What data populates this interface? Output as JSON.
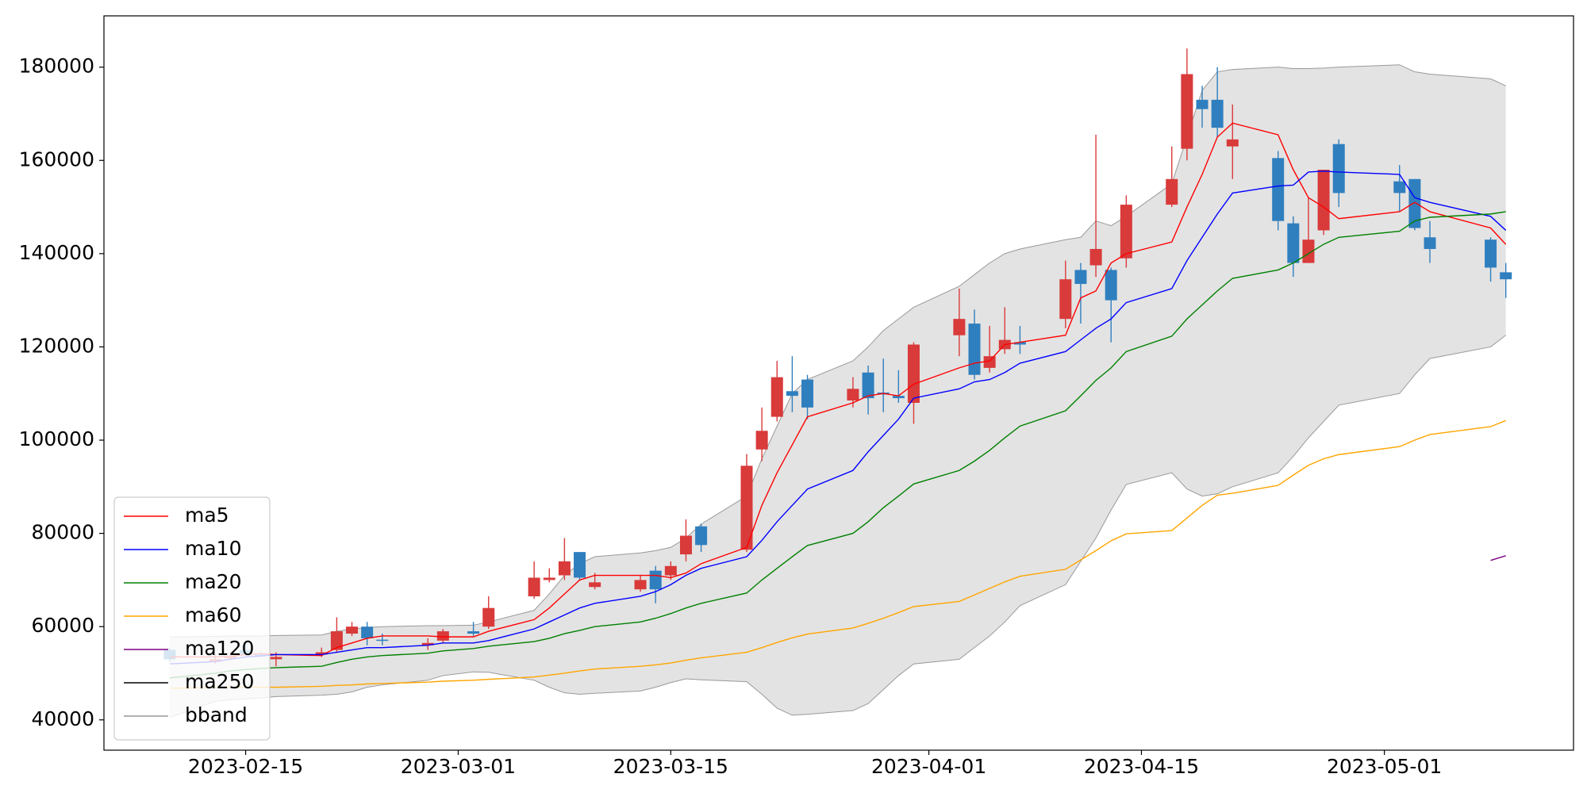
{
  "chart_data": {
    "type": "candlestick",
    "x": [
      "2023-02-10",
      "2023-02-13",
      "2023-02-14",
      "2023-02-15",
      "2023-02-16",
      "2023-02-17",
      "2023-02-20",
      "2023-02-21",
      "2023-02-22",
      "2023-02-23",
      "2023-02-24",
      "2023-02-27",
      "2023-02-28",
      "2023-03-02",
      "2023-03-03",
      "2023-03-06",
      "2023-03-07",
      "2023-03-08",
      "2023-03-09",
      "2023-03-10",
      "2023-03-13",
      "2023-03-14",
      "2023-03-15",
      "2023-03-16",
      "2023-03-17",
      "2023-03-20",
      "2023-03-21",
      "2023-03-22",
      "2023-03-23",
      "2023-03-24",
      "2023-03-27",
      "2023-03-28",
      "2023-03-29",
      "2023-03-30",
      "2023-03-31",
      "2023-04-03",
      "2023-04-04",
      "2023-04-05",
      "2023-04-06",
      "2023-04-07",
      "2023-04-10",
      "2023-04-11",
      "2023-04-12",
      "2023-04-13",
      "2023-04-14",
      "2023-04-17",
      "2023-04-18",
      "2023-04-19",
      "2023-04-20",
      "2023-04-21",
      "2023-04-24",
      "2023-04-25",
      "2023-04-26",
      "2023-04-27",
      "2023-04-28",
      "2023-05-02",
      "2023-05-03",
      "2023-05-04",
      "2023-05-08",
      "2023-05-09"
    ],
    "open": [
      55000,
      52500,
      53200,
      55000,
      54000,
      53000,
      54000,
      55000,
      58500,
      60000,
      57200,
      56000,
      57000,
      59000,
      60000,
      66500,
      70000,
      71000,
      76000,
      68500,
      68000,
      72000,
      71000,
      75500,
      81500,
      76500,
      98000,
      105000,
      110500,
      113000,
      108500,
      114500,
      110200,
      109500,
      108000,
      122500,
      125000,
      115500,
      119500,
      121000,
      126000,
      136500,
      137500,
      136500,
      139000,
      150500,
      162500,
      173000,
      173000,
      163000,
      160500,
      146500,
      138000,
      145000,
      163500,
      155500,
      156000,
      143500,
      143000,
      136000
    ],
    "high": [
      55500,
      54000,
      54500,
      56500,
      54500,
      54500,
      55500,
      62000,
      61000,
      61000,
      58500,
      57500,
      59500,
      61000,
      66500,
      74000,
      72500,
      79000,
      76000,
      71500,
      71000,
      73000,
      74000,
      83000,
      82000,
      97000,
      107000,
      117000,
      118000,
      114000,
      113500,
      116000,
      117500,
      115000,
      121000,
      132500,
      128000,
      124500,
      128500,
      124500,
      138500,
      138000,
      165500,
      137000,
      152500,
      163000,
      184000,
      176000,
      180000,
      172000,
      162000,
      148000,
      152000,
      158000,
      164500,
      159000,
      156000,
      147000,
      143500,
      138000
    ],
    "low": [
      52500,
      52000,
      53000,
      53500,
      53500,
      51500,
      53500,
      54500,
      58000,
      56000,
      56000,
      55000,
      56500,
      58000,
      59500,
      66000,
      69500,
      70000,
      70000,
      68000,
      67500,
      65000,
      70000,
      74000,
      76000,
      76000,
      95500,
      104000,
      106000,
      104500,
      107000,
      105500,
      106000,
      108000,
      103500,
      118000,
      113000,
      114500,
      118500,
      118500,
      124000,
      125000,
      135000,
      121000,
      137000,
      150000,
      160000,
      167000,
      165000,
      156000,
      145000,
      135000,
      138000,
      144000,
      150000,
      149000,
      145000,
      138000,
      134000,
      130500
    ],
    "close": [
      53000,
      53000,
      53600,
      54000,
      53800,
      53500,
      54500,
      59000,
      60000,
      57500,
      57000,
      56500,
      59000,
      58500,
      64000,
      70500,
      70500,
      74000,
      70500,
      69500,
      70000,
      68000,
      73000,
      79500,
      77500,
      94500,
      102000,
      113500,
      109500,
      107000,
      111000,
      109000,
      109800,
      109000,
      120500,
      126000,
      114000,
      118000,
      121500,
      120500,
      134500,
      133500,
      141000,
      130000,
      150500,
      156000,
      178500,
      171000,
      167000,
      164500,
      147000,
      138000,
      143000,
      158000,
      153000,
      153000,
      145500,
      141000,
      137000,
      134500
    ],
    "up_color": "#d93a3a",
    "down_color": "#2f7fbf",
    "series": [
      {
        "name": "ma5",
        "color": "#ff0000",
        "values": [
          53500,
          53500,
          53600,
          54000,
          54200,
          54000,
          53800,
          55500,
          56500,
          57500,
          58000,
          58000,
          57800,
          57800,
          59000,
          61500,
          64000,
          67000,
          70000,
          71000,
          71000,
          71000,
          70500,
          71500,
          73500,
          77000,
          86000,
          93000,
          99000,
          105000,
          108000,
          109500,
          110000,
          109500,
          112000,
          115500,
          116500,
          117000,
          120500,
          121000,
          122500,
          130500,
          132000,
          138000,
          140000,
          142500,
          150000,
          157000,
          165000,
          168000,
          165500,
          158000,
          152000,
          150000,
          147500,
          149000,
          151000,
          149000,
          145500,
          142000
        ]
      },
      {
        "name": "ma10",
        "color": "#0000ff",
        "values": [
          52000,
          52500,
          53000,
          53500,
          53700,
          54000,
          54000,
          54500,
          55000,
          55500,
          55500,
          56000,
          56500,
          56500,
          57000,
          59500,
          61000,
          62500,
          64000,
          65000,
          66500,
          67500,
          69000,
          71000,
          72500,
          75000,
          78500,
          82500,
          86000,
          89500,
          93500,
          97500,
          101000,
          104500,
          109000,
          111000,
          112500,
          113000,
          114500,
          116500,
          119000,
          121500,
          124000,
          126000,
          129500,
          132500,
          138500,
          143500,
          148500,
          153000,
          154500,
          154700,
          157500,
          157700,
          157500,
          157000,
          152000,
          151000,
          148000,
          145000
        ]
      },
      {
        "name": "ma20",
        "color": "#008000",
        "values": [
          49000,
          50000,
          50500,
          50800,
          51000,
          51200,
          51500,
          52300,
          53000,
          53500,
          53800,
          54300,
          54800,
          55300,
          55800,
          56800,
          57500,
          58500,
          59200,
          60000,
          61000,
          61800,
          62800,
          64000,
          65000,
          67200,
          70000,
          72500,
          75000,
          77400,
          80000,
          82500,
          85500,
          88000,
          90600,
          93500,
          95500,
          97800,
          100500,
          103000,
          106300,
          109500,
          112800,
          115500,
          119000,
          122300,
          126000,
          129000,
          132000,
          134700,
          136500,
          138000,
          140000,
          142000,
          143500,
          144800,
          147000,
          147800,
          148500,
          149000
        ]
      },
      {
        "name": "ma60",
        "color": "#ffa500",
        "values": [
          46800,
          46900,
          46900,
          47000,
          47000,
          47000,
          47200,
          47400,
          47500,
          47700,
          47800,
          48100,
          48300,
          48500,
          48700,
          49200,
          49600,
          50000,
          50500,
          50900,
          51500,
          51800,
          52200,
          52800,
          53300,
          54500,
          55500,
          56600,
          57600,
          58400,
          59700,
          60700,
          61800,
          63000,
          64300,
          65400,
          66800,
          68200,
          69600,
          70800,
          72300,
          74300,
          76300,
          78400,
          79900,
          80600,
          83300,
          86000,
          88200,
          88600,
          90300,
          92500,
          94600,
          96000,
          96900,
          98600,
          100000,
          101200,
          102900,
          104200
        ]
      },
      {
        "name": "ma120",
        "color": "#800080",
        "values": [
          null,
          null,
          null,
          null,
          null,
          null,
          null,
          null,
          null,
          null,
          null,
          null,
          null,
          null,
          null,
          null,
          null,
          null,
          null,
          null,
          null,
          null,
          null,
          null,
          null,
          null,
          null,
          null,
          null,
          null,
          null,
          null,
          null,
          null,
          null,
          null,
          null,
          null,
          null,
          null,
          null,
          null,
          null,
          null,
          null,
          null,
          null,
          null,
          null,
          null,
          null,
          null,
          null,
          null,
          null,
          null,
          null,
          null,
          74200,
          75200
        ]
      },
      {
        "name": "ma250",
        "color": "#000000",
        "values": [
          null,
          null,
          null,
          null,
          null,
          null,
          null,
          null,
          null,
          null,
          null,
          null,
          null,
          null,
          null,
          null,
          null,
          null,
          null,
          null,
          null,
          null,
          null,
          null,
          null,
          null,
          null,
          null,
          null,
          null,
          null,
          null,
          null,
          null,
          null,
          null,
          null,
          null,
          null,
          null,
          null,
          null,
          null,
          null,
          null,
          null,
          null,
          null,
          null,
          null,
          null,
          null,
          null,
          null,
          null,
          null,
          null,
          null,
          null,
          null
        ]
      }
    ],
    "bband": {
      "name": "bband",
      "color": "#e3e3e3",
      "edge_color": "#999999",
      "upper": [
        57800,
        57900,
        58000,
        58000,
        58000,
        58100,
        58200,
        59000,
        59500,
        59800,
        60000,
        60200,
        60200,
        60300,
        61000,
        63500,
        67000,
        71000,
        73500,
        75000,
        75800,
        76300,
        77000,
        79000,
        82000,
        88000,
        96000,
        103000,
        110000,
        113000,
        117000,
        120000,
        123500,
        126000,
        128500,
        133000,
        135500,
        138000,
        140000,
        141000,
        143000,
        143500,
        147000,
        146000,
        148000,
        155000,
        165000,
        175000,
        179000,
        179500,
        180000,
        179700,
        179700,
        179800,
        180000,
        180500,
        179000,
        178500,
        177500,
        176000
      ],
      "lower": [
        40500,
        44000,
        44300,
        44500,
        44700,
        45000,
        45300,
        45500,
        46000,
        47000,
        47500,
        48500,
        49500,
        50300,
        50200,
        48500,
        47000,
        45800,
        45500,
        45700,
        46200,
        47000,
        48000,
        48800,
        48600,
        48200,
        45500,
        42500,
        41000,
        41200,
        42000,
        43500,
        46500,
        49500,
        52000,
        53000,
        55500,
        58000,
        61000,
        64500,
        69000,
        74000,
        79000,
        85000,
        90500,
        93000,
        89500,
        88000,
        88500,
        90000,
        93000,
        96500,
        100500,
        104000,
        107500,
        110000,
        114000,
        117500,
        120000,
        122500
      ]
    },
    "xlim": [
      "2023-02-05T16:00",
      "2023-05-13T11:00"
    ],
    "ylim": [
      33500,
      191000
    ],
    "xticks": [
      "2023-02-15",
      "2023-03-01",
      "2023-03-15",
      "2023-04-01",
      "2023-04-15",
      "2023-05-01"
    ],
    "yticks": [
      40000,
      60000,
      80000,
      100000,
      120000,
      140000,
      160000,
      180000
    ],
    "legend": "lower left"
  }
}
